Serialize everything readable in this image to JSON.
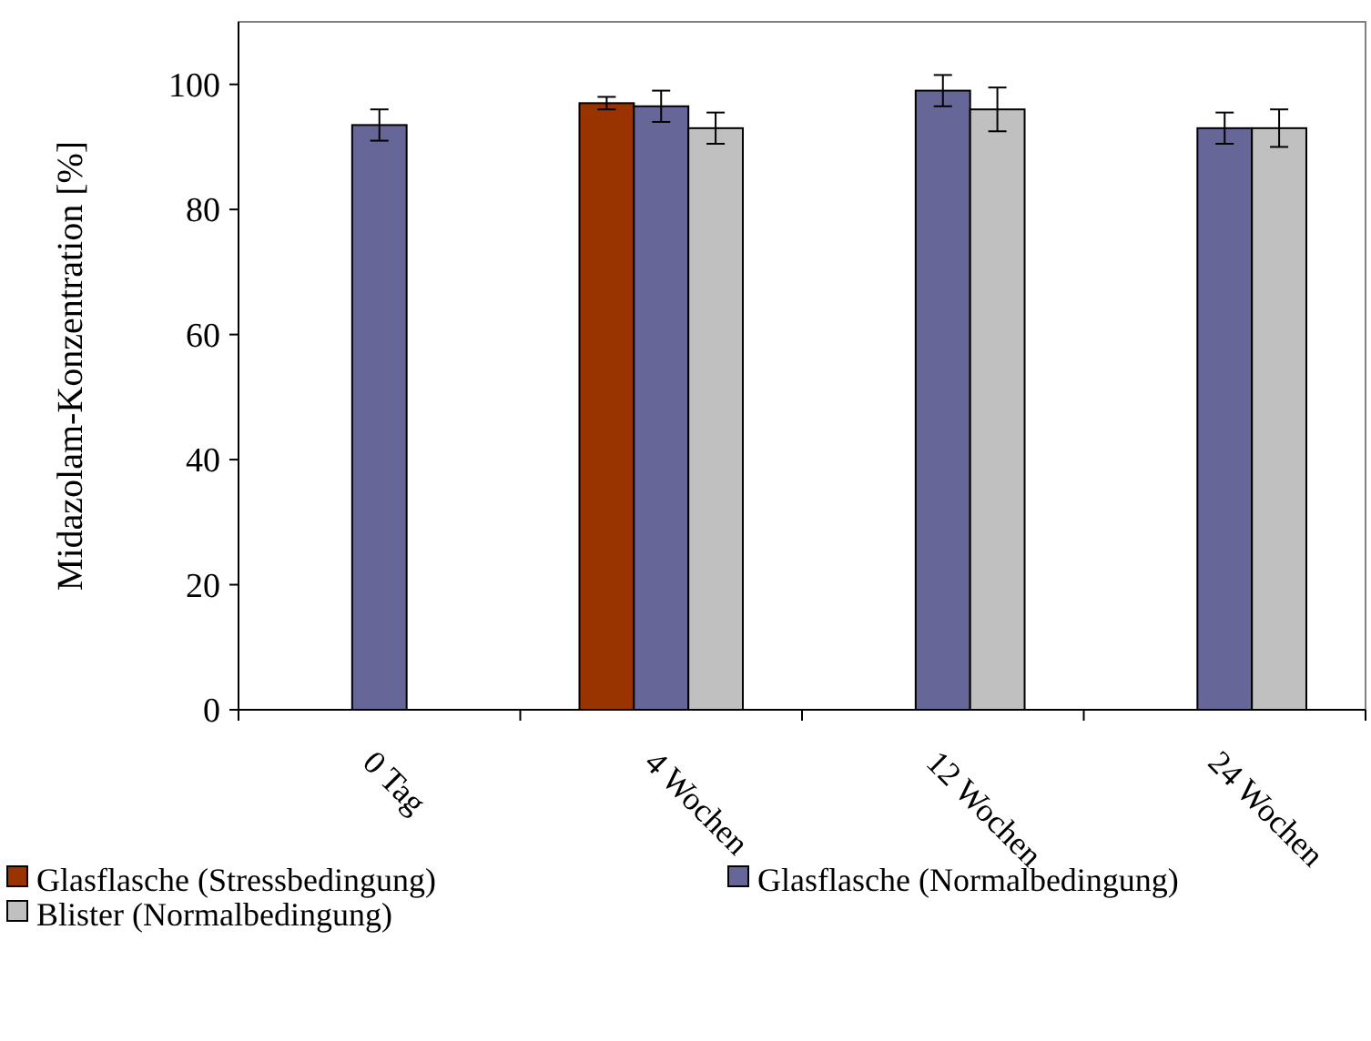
{
  "chart_data": {
    "type": "bar",
    "ylabel": "Midazolam-Konzentration [%]",
    "categories": [
      "0 Tag",
      "4 Wochen",
      "12 Wochen",
      "24 Wochen"
    ],
    "series": [
      {
        "name": "Glasflasche (Stressbedingung)",
        "color": "#993300",
        "values": [
          null,
          97,
          null,
          null
        ],
        "errors": [
          null,
          1,
          null,
          null
        ]
      },
      {
        "name": "Glasflasche (Normalbedingung)",
        "color": "#666699",
        "values": [
          93.5,
          96.5,
          99,
          93
        ],
        "errors": [
          2.5,
          2.5,
          2.5,
          2.5
        ]
      },
      {
        "name": "Blister (Normalbedingung)",
        "color": "#c0c0c0",
        "values": [
          null,
          93,
          96,
          93
        ],
        "errors": [
          null,
          2.5,
          3.5,
          3
        ]
      }
    ],
    "ylim": [
      0,
      110
    ],
    "yticks": [
      0,
      20,
      40,
      60,
      80,
      100
    ],
    "grid": false,
    "legend": "bottom"
  }
}
